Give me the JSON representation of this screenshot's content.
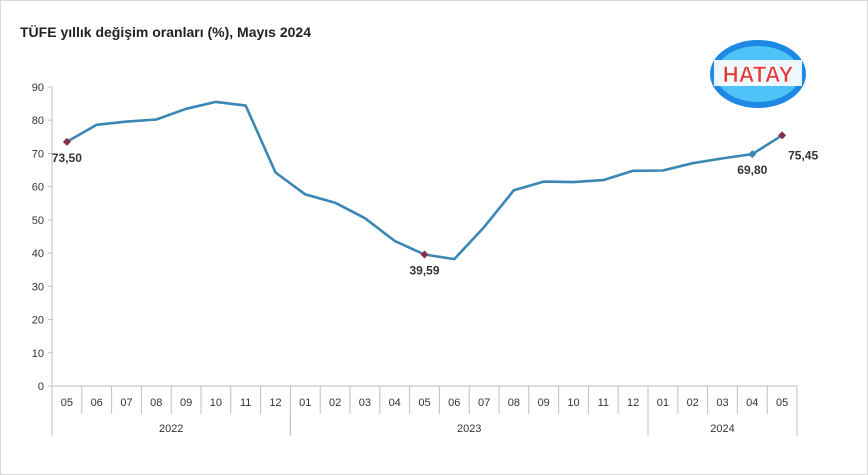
{
  "chart_data": {
    "type": "line",
    "title": "TÜFE yıllık değişim oranları (%), Mayıs 2024",
    "xlabel": "",
    "ylabel": "",
    "ylim": [
      0,
      90
    ],
    "yticks": [
      "0",
      "10",
      "20",
      "30",
      "40",
      "50",
      "60",
      "70",
      "80",
      "90"
    ],
    "grid": false,
    "categories": [
      "05",
      "06",
      "07",
      "08",
      "09",
      "10",
      "11",
      "12",
      "01",
      "02",
      "03",
      "04",
      "05",
      "06",
      "07",
      "08",
      "09",
      "10",
      "11",
      "12",
      "01",
      "02",
      "03",
      "04",
      "05"
    ],
    "year_groups": [
      {
        "label": "2022",
        "start": 0,
        "end": 7
      },
      {
        "label": "2023",
        "start": 8,
        "end": 19
      },
      {
        "label": "2024",
        "start": 20,
        "end": 24
      }
    ],
    "series": [
      {
        "values": [
          73.5,
          78.62,
          79.6,
          80.21,
          83.45,
          85.51,
          84.39,
          64.27,
          57.68,
          55.18,
          50.51,
          43.68,
          39.59,
          38.21,
          47.83,
          58.94,
          61.53,
          61.36,
          61.98,
          64.77,
          64.86,
          67.07,
          68.5,
          69.8,
          75.45
        ]
      }
    ],
    "annotations": [
      {
        "index": 0,
        "label": "73,50",
        "position": "below"
      },
      {
        "index": 12,
        "label": "39,59",
        "position": "below"
      },
      {
        "index": 23,
        "label": "69,80",
        "position": "below"
      },
      {
        "index": 24,
        "label": "75,45",
        "position": "right"
      }
    ],
    "line_color": "#3a86b4",
    "marker_color": "#8b2d4a"
  },
  "logo": {
    "text": "HATAY",
    "colors": [
      "#1e88e5",
      "#e53935"
    ]
  }
}
